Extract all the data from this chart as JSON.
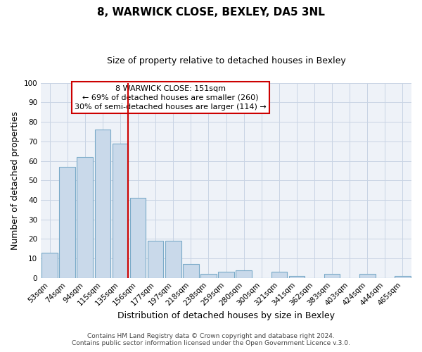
{
  "title": "8, WARWICK CLOSE, BEXLEY, DA5 3NL",
  "subtitle": "Size of property relative to detached houses in Bexley",
  "xlabel": "Distribution of detached houses by size in Bexley",
  "ylabel": "Number of detached properties",
  "bar_labels": [
    "53sqm",
    "74sqm",
    "94sqm",
    "115sqm",
    "135sqm",
    "156sqm",
    "177sqm",
    "197sqm",
    "218sqm",
    "238sqm",
    "259sqm",
    "280sqm",
    "300sqm",
    "321sqm",
    "341sqm",
    "362sqm",
    "383sqm",
    "403sqm",
    "424sqm",
    "444sqm",
    "465sqm"
  ],
  "bar_values": [
    13,
    57,
    62,
    76,
    69,
    41,
    19,
    19,
    7,
    2,
    3,
    4,
    0,
    3,
    1,
    0,
    2,
    0,
    2,
    0,
    1
  ],
  "bar_color": "#c9d9ea",
  "bar_edgecolor": "#7aaac8",
  "vline_color": "#cc0000",
  "vline_pos": 4.42,
  "ylim": [
    0,
    100
  ],
  "annotation_line1": "8 WARWICK CLOSE: 151sqm",
  "annotation_line2": "← 69% of detached houses are smaller (260)",
  "annotation_line3": "30% of semi-detached houses are larger (114) →",
  "annotation_box_color": "#ffffff",
  "annotation_box_edgecolor": "#cc0000",
  "footer_line1": "Contains HM Land Registry data © Crown copyright and database right 2024.",
  "footer_line2": "Contains public sector information licensed under the Open Government Licence v.3.0.",
  "background_color": "#ffffff",
  "plot_bg_color": "#eef2f8",
  "grid_color": "#c8d4e4",
  "title_fontsize": 11,
  "subtitle_fontsize": 9,
  "axis_label_fontsize": 9,
  "tick_fontsize": 7.5,
  "footer_fontsize": 6.5,
  "annotation_fontsize": 8
}
